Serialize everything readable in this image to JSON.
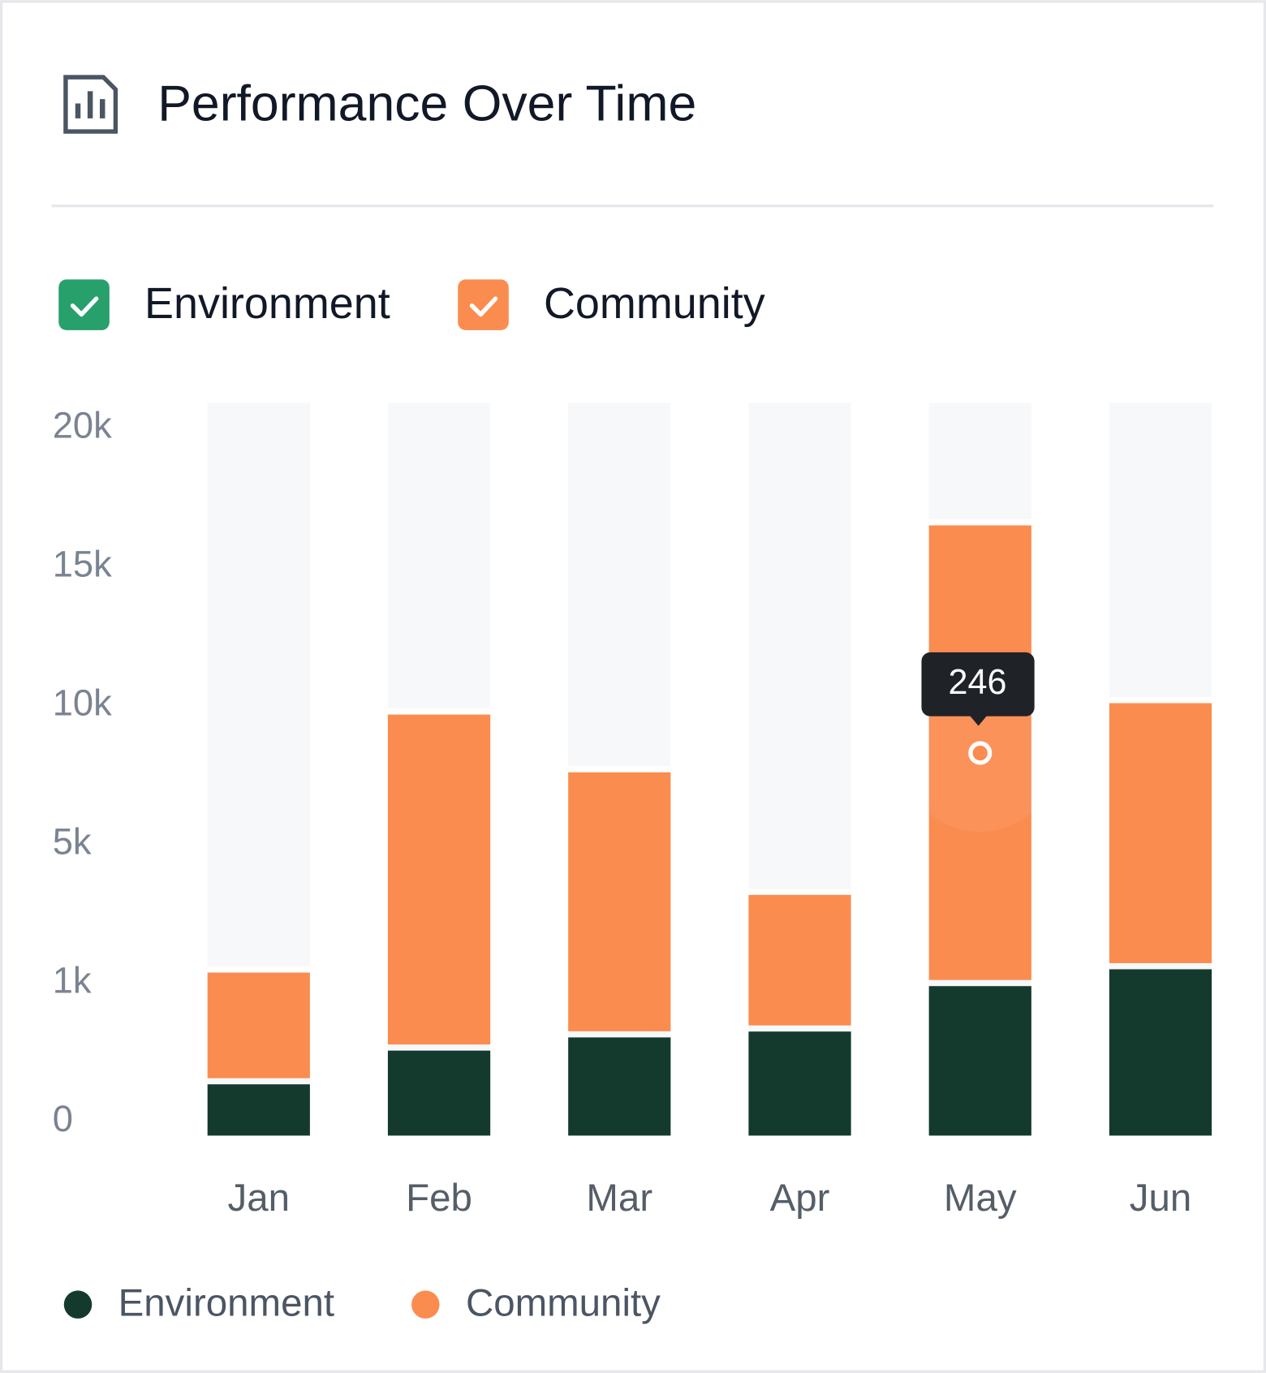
{
  "chart_data": {
    "type": "stacked-bar",
    "title": "Performance Over Time",
    "categories": [
      "Jan",
      "Feb",
      "Mar",
      "Apr",
      "May",
      "Jun"
    ],
    "series": [
      {
        "name": "Environment",
        "color": "#143a2e",
        "values": [
          350,
          580,
          670,
          710,
          1080,
          1540
        ]
      },
      {
        "name": "Community",
        "color": "#fb8c4f",
        "values": [
          1100,
          8785,
          6725,
          2860,
          14740,
          8215
        ]
      }
    ],
    "ylim": [
      0,
      20000
    ],
    "yticks": [
      0,
      {
        "value": 1000,
        "label": "1k"
      },
      {
        "value": 5000,
        "label": "5k"
      },
      {
        "value": 10000,
        "label": "10k"
      },
      {
        "value": 15000,
        "label": "15k"
      },
      {
        "value": 20000,
        "label": "20k"
      }
    ],
    "y_scale": "tick-spaced",
    "annotations": [
      "246"
    ]
  }
}
